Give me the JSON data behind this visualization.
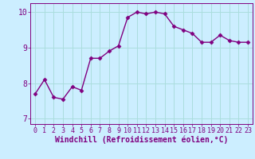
{
  "x": [
    0,
    1,
    2,
    3,
    4,
    5,
    6,
    7,
    8,
    9,
    10,
    11,
    12,
    13,
    14,
    15,
    16,
    17,
    18,
    19,
    20,
    21,
    22,
    23
  ],
  "y": [
    7.7,
    8.1,
    7.6,
    7.55,
    7.9,
    7.8,
    8.7,
    8.7,
    8.9,
    9.05,
    9.85,
    10.0,
    9.95,
    10.0,
    9.95,
    9.6,
    9.5,
    9.4,
    9.15,
    9.15,
    9.35,
    9.2,
    9.15,
    9.15
  ],
  "line_color": "#800080",
  "marker": "D",
  "marker_size": 2.5,
  "background_color": "#cceeff",
  "grid_color": "#aadddd",
  "xlabel": "Windchill (Refroidissement éolien,°C)",
  "xlabel_fontsize": 7,
  "ylim": [
    6.85,
    10.25
  ],
  "xlim": [
    -0.5,
    23.5
  ],
  "yticks": [
    7,
    8,
    9,
    10
  ],
  "xticks": [
    0,
    1,
    2,
    3,
    4,
    5,
    6,
    7,
    8,
    9,
    10,
    11,
    12,
    13,
    14,
    15,
    16,
    17,
    18,
    19,
    20,
    21,
    22,
    23
  ],
  "ytick_fontsize": 7,
  "xtick_fontsize": 6,
  "line_width": 1.0
}
